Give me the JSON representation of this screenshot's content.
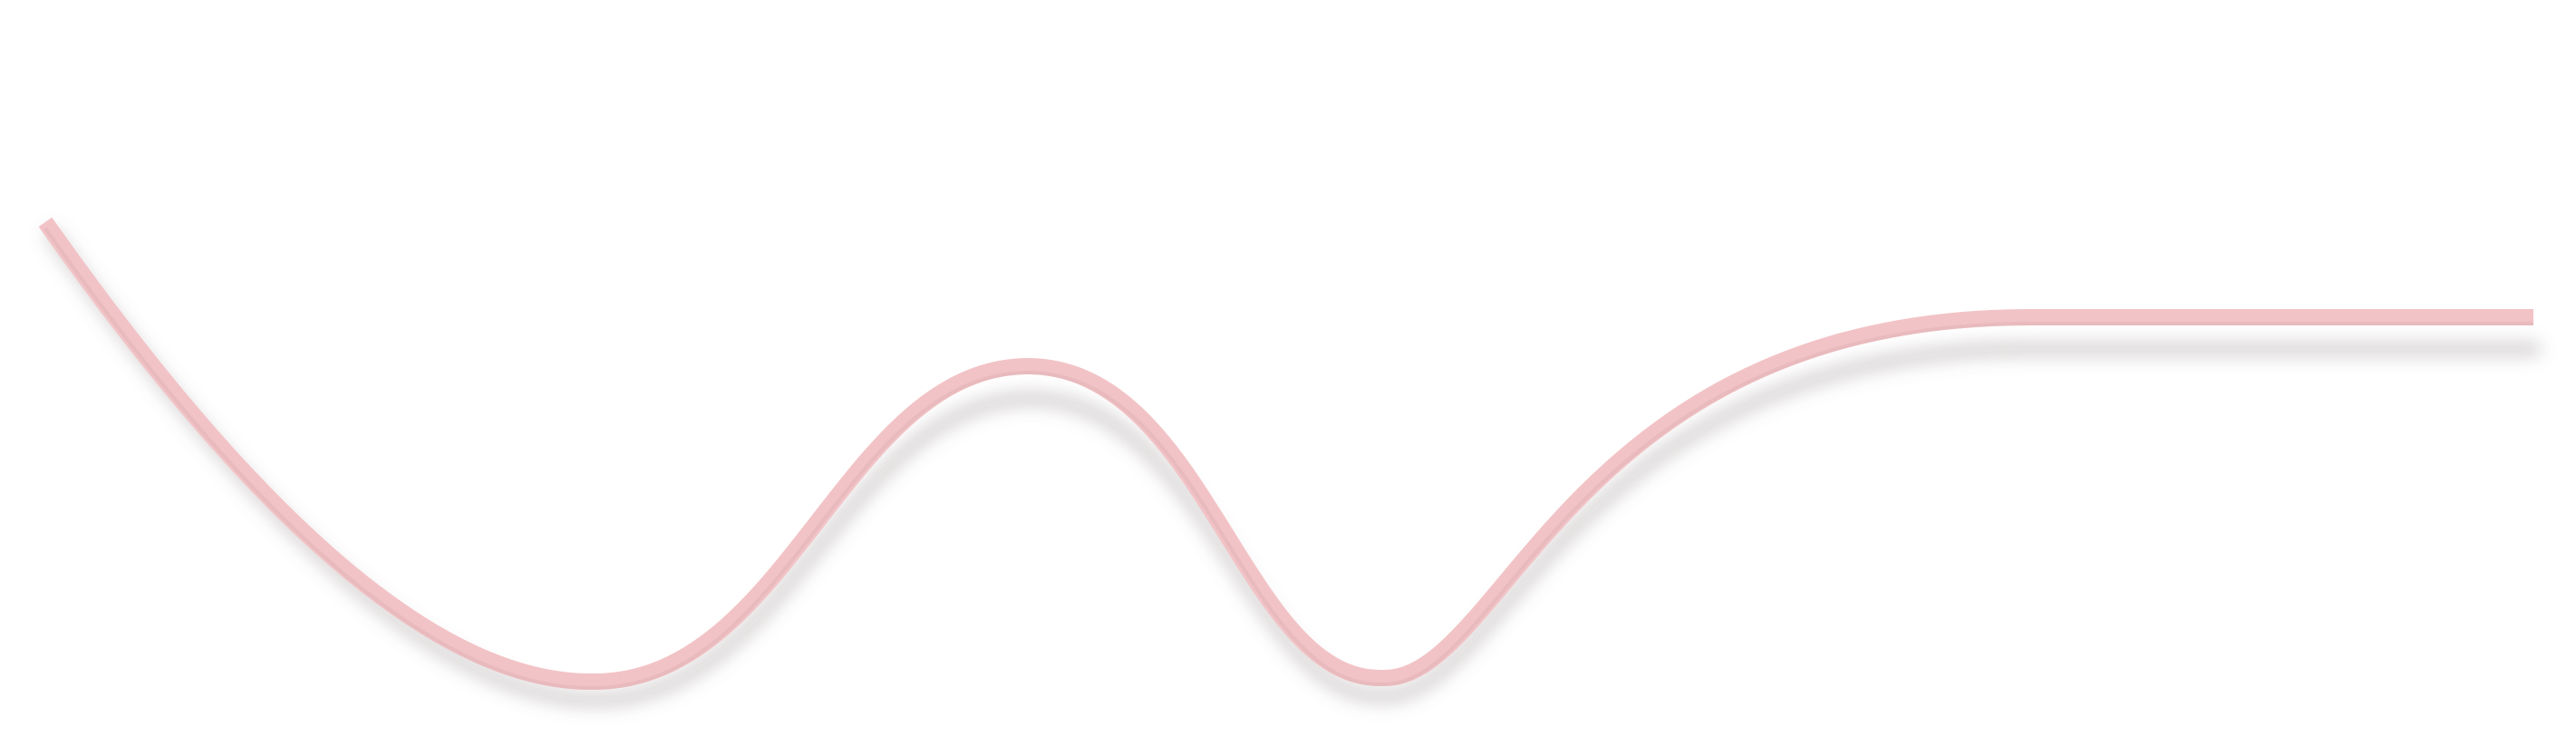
{
  "colors": {
    "background": "#ffffff",
    "ruled_lines": "#cfd2d6",
    "wave_stroke": "#f2c3c6",
    "wave_shadow": "#7a6a6d"
  }
}
